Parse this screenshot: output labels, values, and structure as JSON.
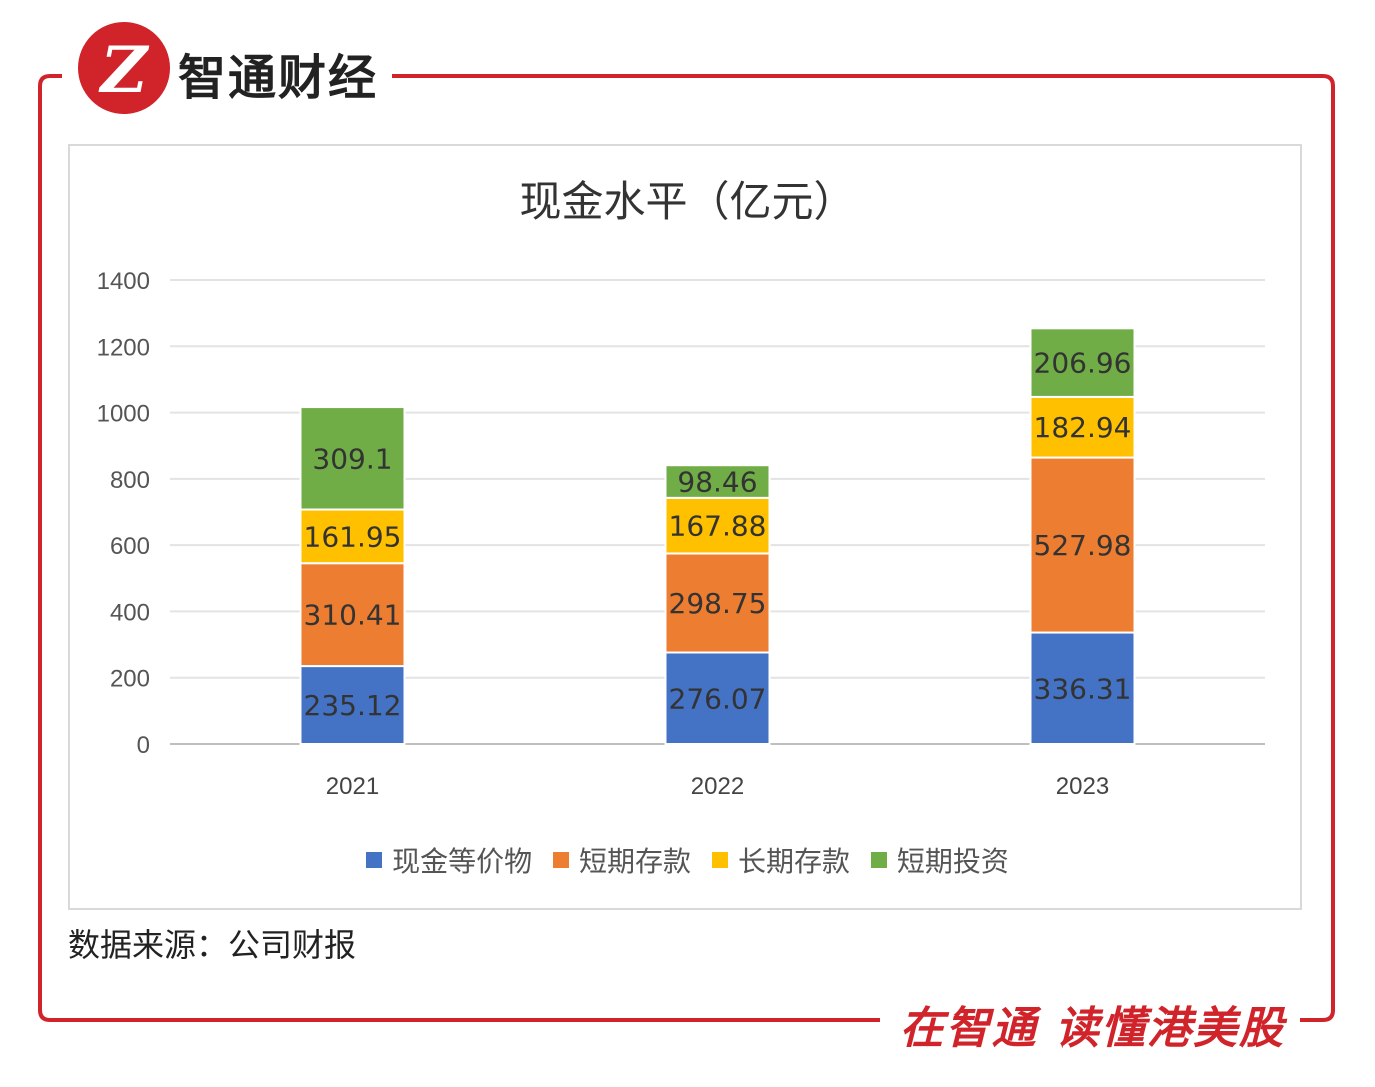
{
  "brand": {
    "name": "智通财经",
    "slogan": "在智通 读懂港美股",
    "accent_color": "#d0232a",
    "logo_icon": "zhitong-logo-icon"
  },
  "chart_data": {
    "type": "bar",
    "stacked": true,
    "title": "现金水平（亿元）",
    "categories": [
      "2021",
      "2022",
      "2023"
    ],
    "series": [
      {
        "name": "现金等价物",
        "color": "#4472c4",
        "values": [
          235.12,
          276.07,
          336.31
        ],
        "labels": [
          "235.12",
          "276.07",
          "336.31"
        ]
      },
      {
        "name": "短期存款",
        "color": "#ed7d31",
        "values": [
          310.41,
          298.75,
          527.98
        ],
        "labels": [
          "310.41",
          "298.75",
          "527.98"
        ]
      },
      {
        "name": "长期存款",
        "color": "#ffc000",
        "values": [
          161.95,
          167.88,
          182.94
        ],
        "labels": [
          "161.95",
          "167.88",
          "182.94"
        ]
      },
      {
        "name": "短期投资",
        "color": "#70ad47",
        "values": [
          309.1,
          98.46,
          206.96
        ],
        "labels": [
          "309.1",
          "98.46",
          "206.96"
        ]
      }
    ],
    "yticks": [
      "0",
      "200",
      "400",
      "600",
      "800",
      "1000",
      "1200",
      "1400"
    ],
    "ylim": [
      0,
      1400
    ],
    "grid": true,
    "legend_position": "bottom"
  },
  "source": "数据来源：公司财报"
}
